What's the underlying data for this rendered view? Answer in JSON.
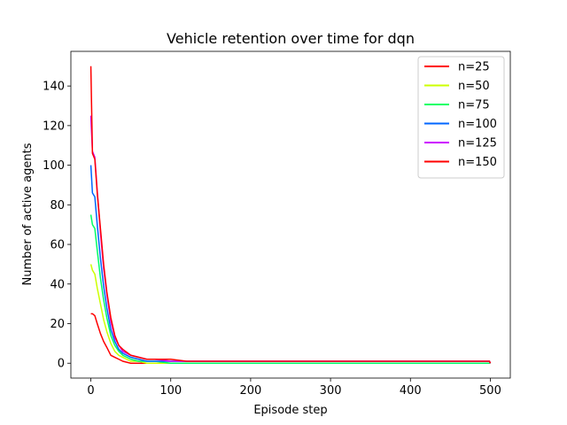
{
  "chart_data": {
    "type": "line",
    "title": "Vehicle retention over time for dqn",
    "xlabel": "Episode step",
    "ylabel": "Number of active agents",
    "xlim": [
      -25,
      525
    ],
    "ylim": [
      -7.5,
      157.5
    ],
    "xticks": [
      0,
      100,
      200,
      300,
      400,
      500
    ],
    "yticks": [
      0,
      20,
      40,
      60,
      80,
      100,
      120,
      140
    ],
    "grid": false,
    "legend_position": "top-right",
    "x": [
      0,
      2,
      5,
      8,
      12,
      16,
      20,
      25,
      30,
      35,
      40,
      50,
      60,
      70,
      80,
      100,
      120,
      150,
      200,
      300,
      400,
      499,
      500
    ],
    "series": [
      {
        "name": "n=25",
        "color": "#ff0000",
        "values": [
          25,
          25,
          24,
          20,
          15,
          11,
          8,
          4,
          3,
          2,
          1,
          0,
          0,
          0,
          0,
          0,
          0,
          0,
          0,
          0,
          0,
          0,
          0
        ]
      },
      {
        "name": "n=50",
        "color": "#ccff00",
        "values": [
          50,
          47,
          45,
          38,
          30,
          22,
          16,
          10,
          6,
          4,
          3,
          1,
          1,
          0,
          0,
          0,
          0,
          0,
          0,
          0,
          0,
          0,
          0
        ]
      },
      {
        "name": "n=75",
        "color": "#00ff66",
        "values": [
          75,
          70,
          68,
          57,
          43,
          32,
          23,
          14,
          9,
          6,
          4,
          2,
          1,
          1,
          1,
          0,
          0,
          0,
          0,
          0,
          0,
          0,
          0
        ]
      },
      {
        "name": "n=100",
        "color": "#0066ff",
        "values": [
          100,
          86,
          84,
          70,
          53,
          39,
          28,
          17,
          11,
          7,
          5,
          3,
          2,
          1,
          1,
          1,
          1,
          1,
          1,
          1,
          1,
          1,
          0
        ]
      },
      {
        "name": "n=125",
        "color": "#cc00ff",
        "values": [
          125,
          107,
          104,
          87,
          66,
          48,
          35,
          21,
          13,
          9,
          6,
          4,
          3,
          2,
          2,
          1,
          1,
          1,
          1,
          1,
          1,
          1,
          0
        ]
      },
      {
        "name": "n=150",
        "color": "#ff0000",
        "values": [
          150,
          106,
          103,
          86,
          68,
          50,
          36,
          23,
          14,
          9,
          7,
          4,
          3,
          2,
          2,
          2,
          1,
          1,
          1,
          1,
          1,
          1,
          0
        ]
      }
    ]
  }
}
